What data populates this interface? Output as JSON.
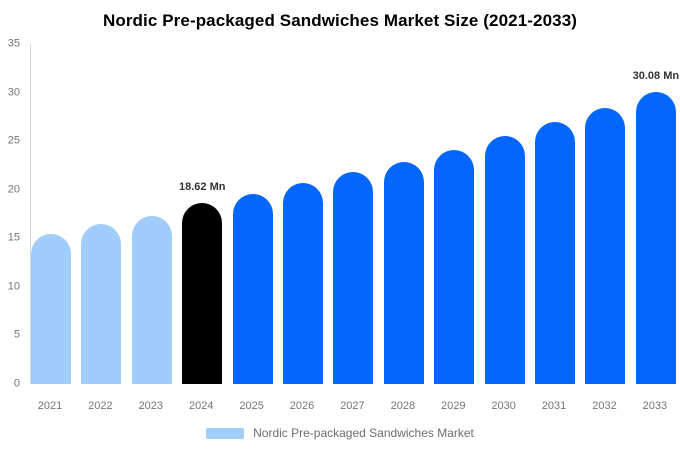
{
  "title": "Nordic Pre-packaged Sandwiches Market Size (2021-2033)",
  "colors": {
    "historical_bar": "#a0cdfb",
    "highlight_bar": "#000000",
    "forecast_bar": "#0467fd",
    "axis_line": "#d8d8d8",
    "axis_text": "#757575",
    "data_label_text": "#333333",
    "legend_text": "#6e6e6e",
    "background": "#ffffff"
  },
  "legend": {
    "label": "Nordic Pre-packaged Sandwiches Market",
    "swatch_color": "#a0cdfb"
  },
  "chart_data": {
    "type": "bar",
    "title": "Nordic Pre-packaged Sandwiches Market Size (2021-2033)",
    "unit": "Mn",
    "categories": [
      "2021",
      "2022",
      "2023",
      "2024",
      "2025",
      "2026",
      "2027",
      "2028",
      "2029",
      "2030",
      "2031",
      "2032",
      "2033"
    ],
    "values": [
      15.4,
      16.5,
      17.3,
      18.62,
      19.6,
      20.7,
      21.8,
      22.9,
      24.1,
      25.5,
      27.0,
      28.4,
      30.08
    ],
    "bar_segments": [
      "historical",
      "historical",
      "historical",
      "highlight",
      "forecast",
      "forecast",
      "forecast",
      "forecast",
      "forecast",
      "forecast",
      "forecast",
      "forecast",
      "forecast"
    ],
    "data_labels": {
      "2024": "18.62 Mn",
      "2033": "30.08 Mn"
    },
    "ylim": [
      0,
      35
    ],
    "yticks": [
      0,
      5,
      10,
      15,
      20,
      25,
      30,
      35
    ],
    "grid": false,
    "legend_position": "bottom",
    "legend_entries": [
      "Nordic Pre-packaged Sandwiches Market"
    ]
  }
}
